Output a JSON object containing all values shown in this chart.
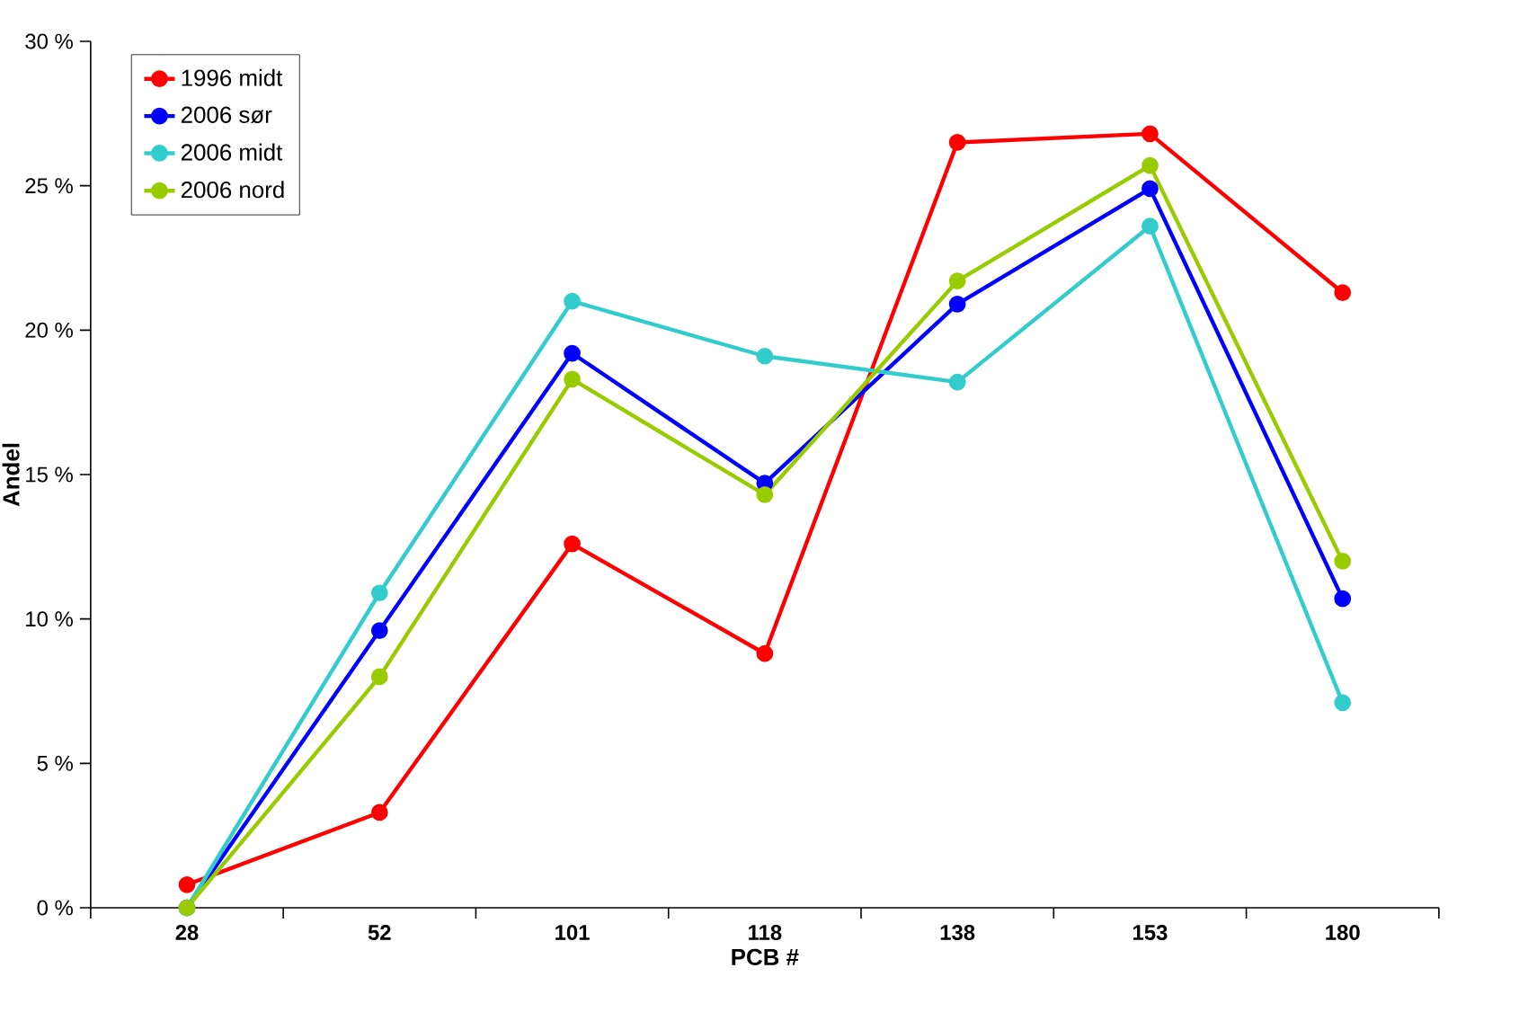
{
  "chart_data": {
    "type": "line",
    "xlabel": "PCB #",
    "ylabel": "Andel",
    "categories": [
      "28",
      "52",
      "101",
      "118",
      "138",
      "153",
      "180"
    ],
    "series": [
      {
        "name": "1996 midt",
        "color": "#ff0000",
        "values": [
          0.8,
          3.3,
          12.6,
          8.8,
          26.5,
          26.8,
          21.3
        ]
      },
      {
        "name": "2006 sør",
        "color": "#0000ff",
        "values": [
          0,
          9.6,
          19.2,
          14.7,
          20.9,
          24.9,
          10.7
        ]
      },
      {
        "name": "2006 midt",
        "color": "#33cccc",
        "values": [
          0,
          10.9,
          21.0,
          19.1,
          18.2,
          23.6,
          7.1
        ]
      },
      {
        "name": "2006 nord",
        "color": "#99cc00",
        "values": [
          0,
          8.0,
          18.3,
          14.3,
          21.7,
          25.7,
          12.0
        ]
      }
    ],
    "ylim": [
      0,
      30
    ],
    "yticks": [
      {
        "value": 0,
        "label": "0 %"
      },
      {
        "value": 5,
        "label": "5 %"
      },
      {
        "value": 10,
        "label": "10 %"
      },
      {
        "value": 15,
        "label": "15 %"
      },
      {
        "value": 20,
        "label": "20 %"
      },
      {
        "value": 25,
        "label": "25 %"
      },
      {
        "value": 30,
        "label": "30 %"
      }
    ],
    "grid": false,
    "legend": "top left",
    "marker": "circle",
    "line_style": "solid"
  }
}
